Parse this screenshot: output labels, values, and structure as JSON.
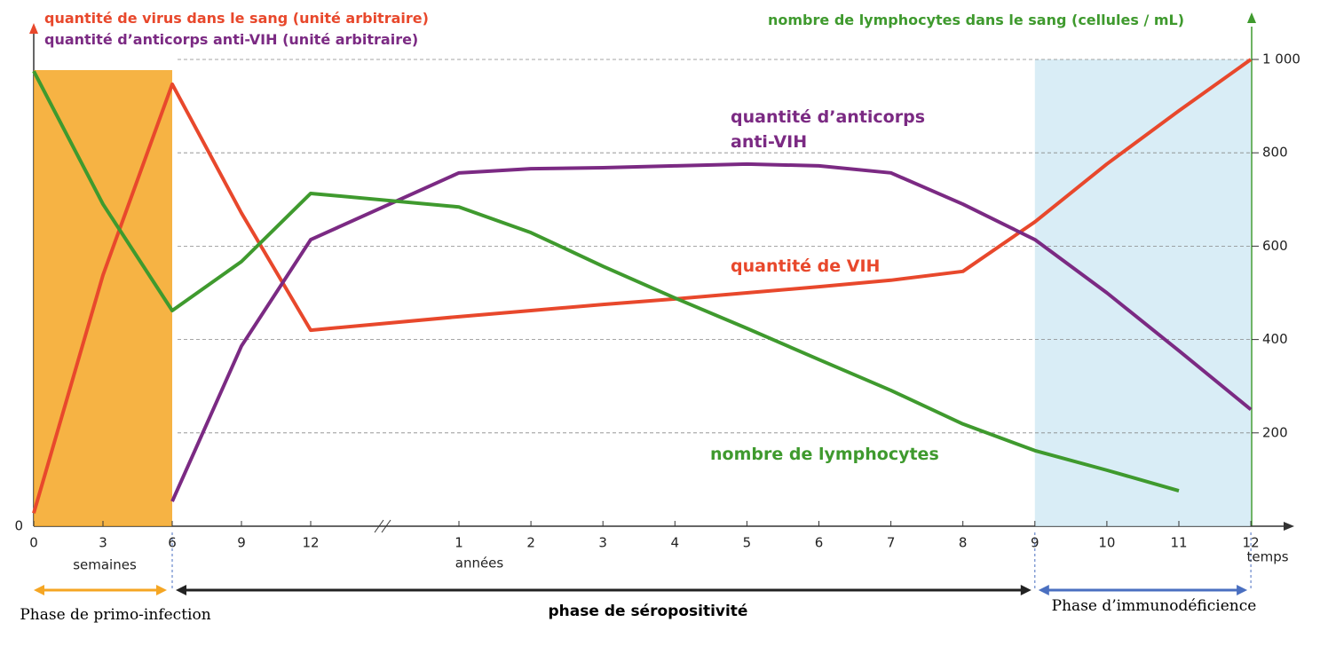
{
  "chart_data": {
    "type": "line",
    "ylabels": [
      {
        "text": "quantité de virus dans le sang (unité arbitraire)",
        "color": "#e8482c"
      },
      {
        "text": "quantité d’anticorps anti-VIH (unité arbitraire)",
        "color": "#7b2a83"
      }
    ],
    "y2label": {
      "text": "nombre de lymphocytes dans le sang (cellules / mL)",
      "color": "#3f9a2e"
    },
    "categories": [
      "0",
      "3",
      "6",
      "9",
      "12",
      "1",
      "2",
      "3",
      "4",
      "5",
      "6",
      "7",
      "8",
      "9",
      "10",
      "11",
      "12"
    ],
    "x_units": {
      "weeks": "semaines",
      "years": "années",
      "time": "temps"
    },
    "ylim": [
      0,
      1000
    ],
    "yticks": [
      0
    ],
    "y2lim": [
      0,
      1000
    ],
    "y2ticks": [
      200,
      400,
      600,
      800,
      {
        "value": 1000,
        "label": "1 000"
      }
    ],
    "grid": true,
    "series": [
      {
        "name": "quantité de VIH",
        "color": "#e8482c",
        "values": [
          28,
          538,
          947,
          671,
          420,
          449,
          462,
          475,
          487,
          500,
          513,
          527,
          546,
          652,
          776,
          890,
          1000
        ]
      },
      {
        "name": "quantité d’anticorps anti-VIH",
        "color": "#7b2a83",
        "values": [
          null,
          null,
          53,
          386,
          614,
          757,
          766,
          768,
          772,
          776,
          772,
          757,
          690,
          614,
          500,
          376,
          250
        ]
      },
      {
        "name": "nombre de lymphocytes",
        "color": "#3f9a2e",
        "axis": "y2",
        "values": [
          975,
          690,
          462,
          567,
          713,
          684,
          629,
          557,
          489,
          424,
          357,
          291,
          219,
          162,
          120,
          76,
          null
        ]
      }
    ],
    "phases": [
      {
        "label": "Phase de primo-infection",
        "color": "#f5a623"
      },
      {
        "label": "phase de séropositivité",
        "color": "#222222"
      },
      {
        "label": "Phase d’immunodéficience",
        "color": "#4a6fc0"
      }
    ]
  }
}
